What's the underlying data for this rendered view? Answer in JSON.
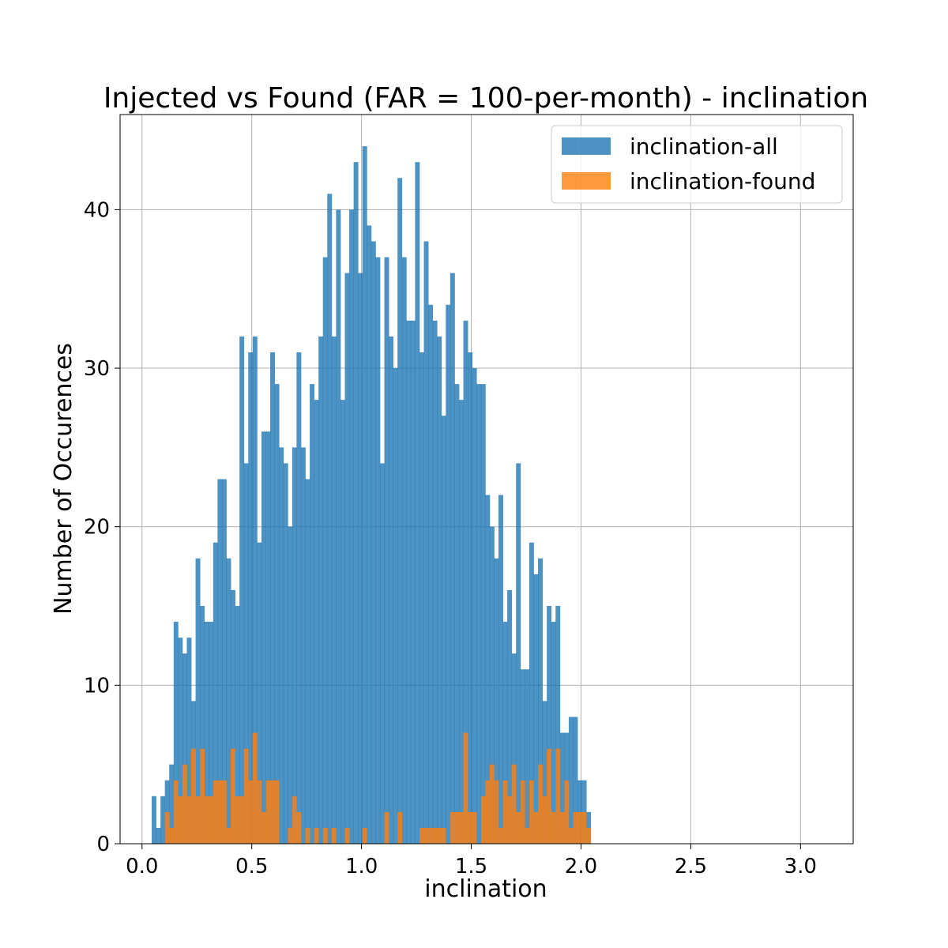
{
  "chart_data": {
    "type": "histogram",
    "title": "Injected vs Found (FAR = 100-per-month) - inclination",
    "xlabel": "inclination",
    "ylabel": "Number of Occurences",
    "xlim": [
      -0.1,
      3.24
    ],
    "ylim": [
      0,
      46
    ],
    "grid": true,
    "legend_position": "top-right",
    "bin_start": 0.044,
    "bin_width": 0.02,
    "x_ticks": [
      {
        "value": 0.0,
        "label": "0.0"
      },
      {
        "value": 0.5,
        "label": "0.5"
      },
      {
        "value": 1.0,
        "label": "1.0"
      },
      {
        "value": 1.5,
        "label": "1.5"
      },
      {
        "value": 2.0,
        "label": "2.0"
      },
      {
        "value": 2.5,
        "label": "2.5"
      },
      {
        "value": 3.0,
        "label": "3.0"
      }
    ],
    "y_ticks": [
      {
        "value": 0,
        "label": "0"
      },
      {
        "value": 10,
        "label": "10"
      },
      {
        "value": 20,
        "label": "20"
      },
      {
        "value": 30,
        "label": "30"
      },
      {
        "value": 40,
        "label": "40"
      }
    ],
    "series": [
      {
        "name": "inclination-all",
        "color": "#1f77b4",
        "opacity": 0.8,
        "values": [
          3,
          1,
          3,
          4,
          5,
          14,
          13,
          12,
          13,
          9,
          18,
          15,
          14,
          14,
          19,
          23,
          23,
          18,
          16,
          15,
          32,
          24,
          31,
          32,
          19,
          26,
          26,
          31,
          29,
          25,
          24,
          20,
          25,
          31,
          25,
          23,
          29,
          28,
          32,
          37,
          41,
          32,
          40,
          28,
          36,
          40,
          43,
          36,
          44,
          39,
          38,
          37,
          24,
          37,
          32,
          30,
          42,
          37,
          33,
          33,
          43,
          31,
          38,
          34,
          33,
          32,
          27,
          34,
          36,
          29,
          28,
          33,
          31,
          30,
          29,
          29,
          22,
          20,
          18,
          22,
          14,
          16,
          12,
          24,
          11,
          11,
          19,
          17,
          18,
          9,
          15,
          14,
          15,
          7,
          7,
          8,
          8,
          4,
          4,
          2
        ]
      },
      {
        "name": "inclination-found",
        "color": "#ff7f0e",
        "opacity": 0.8,
        "values": [
          0,
          0,
          0,
          2,
          1,
          4,
          3,
          5,
          3,
          6,
          3,
          6,
          3,
          3,
          4,
          4,
          4,
          1,
          6,
          3,
          3,
          6,
          4,
          7,
          4,
          2,
          4,
          4,
          4,
          0,
          0,
          1,
          3,
          2,
          0,
          1,
          0,
          1,
          0,
          1,
          0,
          1,
          0,
          0,
          1,
          0,
          0,
          0,
          1,
          0,
          0,
          0,
          0,
          2,
          0,
          0,
          2,
          0,
          0,
          0,
          0,
          1,
          1,
          1,
          1,
          1,
          1,
          0,
          2,
          2,
          2,
          7,
          2,
          2,
          0,
          3,
          4,
          5,
          4,
          1,
          4,
          3,
          5,
          2,
          4,
          1,
          4,
          2,
          5,
          3,
          6,
          2,
          6,
          2,
          4,
          1,
          2,
          2,
          2,
          1
        ]
      }
    ]
  }
}
